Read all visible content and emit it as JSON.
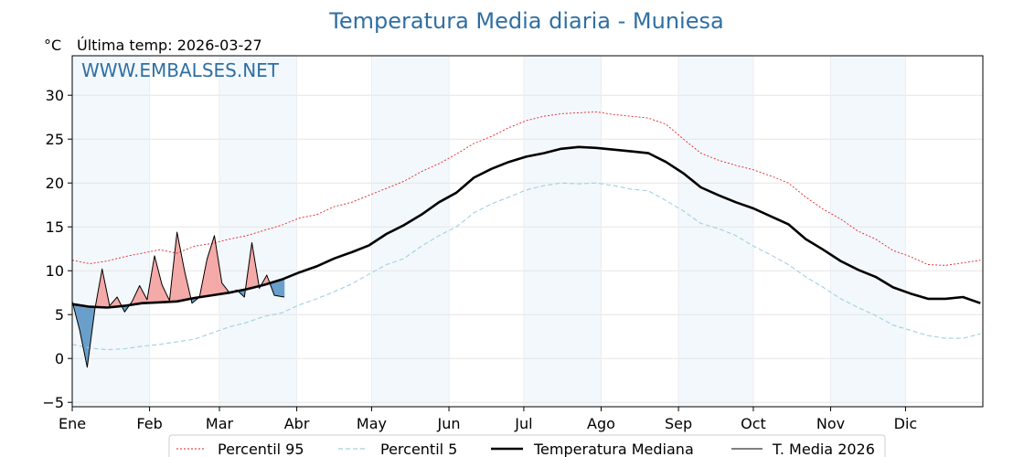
{
  "chart_data": {
    "type": "line",
    "title": "Temperatura Media diaria - Muniesa",
    "unit_label": "°C",
    "last_temp": "Última temp: 2026-03-27",
    "watermark": "WWW.EMBALSES.NET",
    "x_ticks": [
      "Ene",
      "Feb",
      "Mar",
      "Abr",
      "May",
      "Jun",
      "Jul",
      "Ago",
      "Sep",
      "Oct",
      "Nov",
      "Dic"
    ],
    "y_ticks": [
      -5,
      0,
      5,
      10,
      15,
      20,
      25,
      30
    ],
    "ylim": [
      -5.5,
      34.5
    ],
    "x_days": [
      1,
      8,
      15,
      22,
      29,
      36,
      43,
      50,
      57,
      64,
      71,
      78,
      85,
      92,
      99,
      106,
      113,
      120,
      127,
      134,
      141,
      148,
      155,
      162,
      169,
      176,
      183,
      190,
      197,
      204,
      211,
      218,
      225,
      232,
      239,
      246,
      253,
      260,
      267,
      274,
      281,
      288,
      295,
      302,
      309,
      316,
      323,
      330,
      337,
      344,
      351,
      358,
      365
    ],
    "series": [
      {
        "name": "Percentil 95",
        "color": "#e32222",
        "values": [
          11.2,
          10.8,
          11.1,
          11.6,
          12.0,
          12.4,
          12.0,
          12.8,
          13.1,
          13.6,
          14.0,
          14.6,
          15.2,
          16.0,
          16.4,
          17.3,
          17.8,
          18.6,
          19.4,
          20.2,
          21.3,
          22.2,
          23.3,
          24.5,
          25.3,
          26.3,
          27.1,
          27.6,
          27.9,
          28.0,
          28.1,
          27.8,
          27.6,
          27.4,
          26.7,
          25.0,
          23.4,
          22.6,
          22.0,
          21.5,
          20.8,
          20.0,
          18.4,
          17.0,
          15.9,
          14.5,
          13.6,
          12.3,
          11.6,
          10.7,
          10.6,
          10.9,
          11.2
        ]
      },
      {
        "name": "Percentil 5",
        "color": "#9fd0e2",
        "values": [
          1.6,
          1.2,
          1.0,
          1.1,
          1.4,
          1.6,
          1.9,
          2.2,
          2.9,
          3.6,
          4.1,
          4.8,
          5.2,
          6.1,
          6.8,
          7.6,
          8.5,
          9.6,
          10.7,
          11.4,
          12.8,
          14.0,
          15.0,
          16.6,
          17.6,
          18.4,
          19.2,
          19.7,
          20.0,
          19.9,
          20.0,
          19.7,
          19.3,
          19.1,
          18.0,
          16.8,
          15.4,
          14.8,
          14.0,
          12.8,
          11.8,
          10.7,
          9.3,
          8.1,
          6.8,
          5.8,
          4.9,
          3.8,
          3.2,
          2.6,
          2.3,
          2.3,
          2.8
        ]
      },
      {
        "name": "Temperatura Mediana",
        "color": "#000000",
        "values": [
          6.2,
          5.9,
          5.8,
          6.0,
          6.3,
          6.4,
          6.5,
          6.9,
          7.2,
          7.5,
          7.9,
          8.4,
          9.0,
          9.8,
          10.5,
          11.4,
          12.1,
          12.9,
          14.2,
          15.2,
          16.4,
          17.8,
          18.9,
          20.6,
          21.6,
          22.4,
          23.0,
          23.4,
          23.9,
          24.1,
          24.0,
          23.8,
          23.6,
          23.4,
          22.4,
          21.1,
          19.5,
          18.6,
          17.8,
          17.1,
          16.2,
          15.3,
          13.6,
          12.4,
          11.1,
          10.1,
          9.3,
          8.1,
          7.4,
          6.8,
          6.8,
          7.0,
          6.3
        ]
      },
      {
        "name": "T. Media 2026",
        "color": "#000000",
        "days": [
          1,
          4,
          7,
          10,
          13,
          16,
          19,
          22,
          25,
          28,
          31,
          34,
          37,
          40,
          43,
          46,
          49,
          52,
          55,
          58,
          61,
          64,
          67,
          70,
          73,
          76,
          79,
          82,
          86
        ],
        "values": [
          6.5,
          3.2,
          -1.0,
          5.5,
          10.2,
          6.0,
          7.0,
          5.3,
          6.5,
          8.3,
          6.7,
          11.7,
          8.4,
          6.6,
          14.4,
          10.0,
          6.3,
          7.0,
          11.3,
          14.0,
          8.6,
          7.5,
          7.8,
          7.0,
          13.2,
          8.0,
          9.5,
          7.2,
          7.0
        ]
      }
    ]
  }
}
